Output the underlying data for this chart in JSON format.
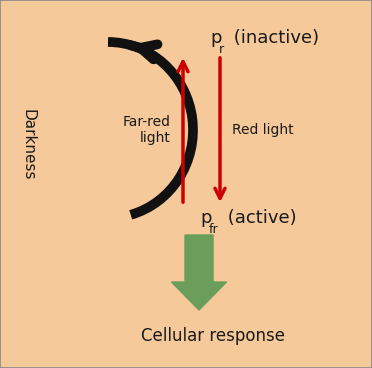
{
  "background_color": "#f5c99a",
  "border_color": "#888888",
  "label_farred": "Far-red\nlight",
  "label_red": "Red light",
  "label_darkness": "Darkness",
  "label_cellular": "Cellular response",
  "arrow_color_red": "#cc0000",
  "arrow_color_black": "#111111",
  "arrow_color_green": "#6a9e5a",
  "text_color": "#1a1a1a",
  "fontsize_main": 11,
  "fontsize_label": 10,
  "fontsize_darkness": 11
}
